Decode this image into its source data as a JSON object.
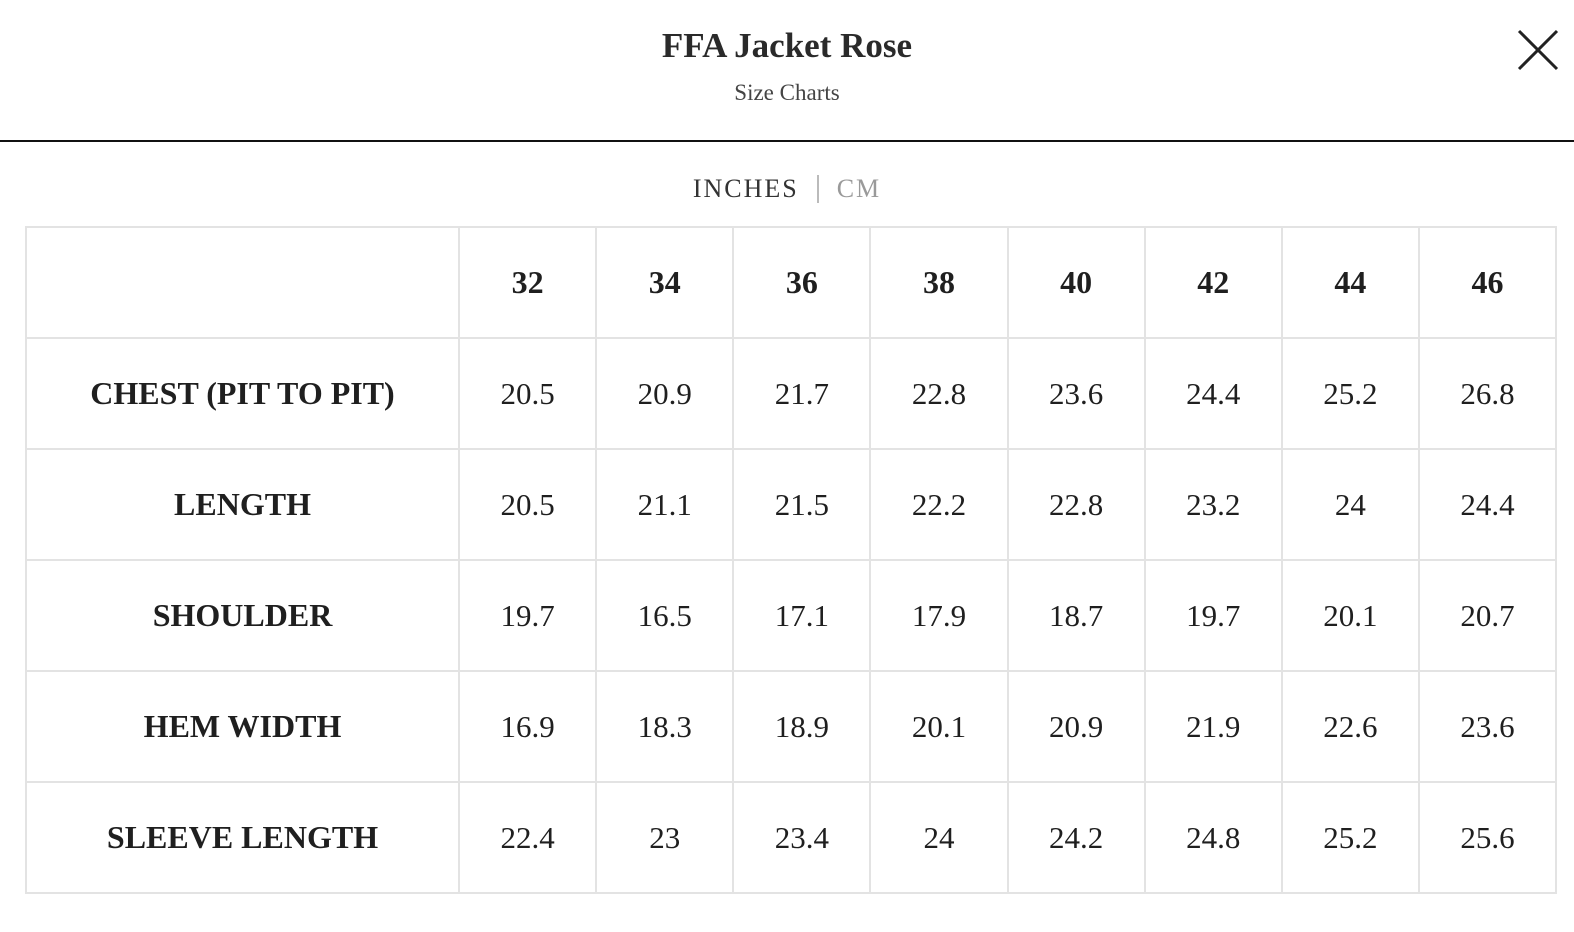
{
  "header": {
    "title": "FFA Jacket Rose",
    "subtitle": "Size Charts"
  },
  "units": [
    "INCHES",
    "CM"
  ],
  "table": {
    "columns": [
      "32",
      "34",
      "36",
      "38",
      "40",
      "42",
      "44",
      "46"
    ],
    "rows": [
      {
        "label": "CHEST (PIT TO PIT)",
        "values": [
          20.5,
          20.9,
          21.7,
          22.8,
          23.6,
          24.4,
          25.2,
          26.8
        ]
      },
      {
        "label": "LENGTH",
        "values": [
          20.5,
          21.1,
          21.5,
          22.2,
          22.8,
          23.2,
          24,
          24.4
        ]
      },
      {
        "label": "SHOULDER",
        "values": [
          19.7,
          16.5,
          17.1,
          17.9,
          18.7,
          19.7,
          20.1,
          20.7
        ]
      },
      {
        "label": "HEM WIDTH",
        "values": [
          16.9,
          18.3,
          18.9,
          20.1,
          20.9,
          21.9,
          22.6,
          23.6
        ]
      },
      {
        "label": "SLEEVE LENGTH",
        "values": [
          22.4,
          23,
          23.4,
          24,
          24.2,
          24.8,
          25.2,
          25.6
        ]
      }
    ]
  }
}
